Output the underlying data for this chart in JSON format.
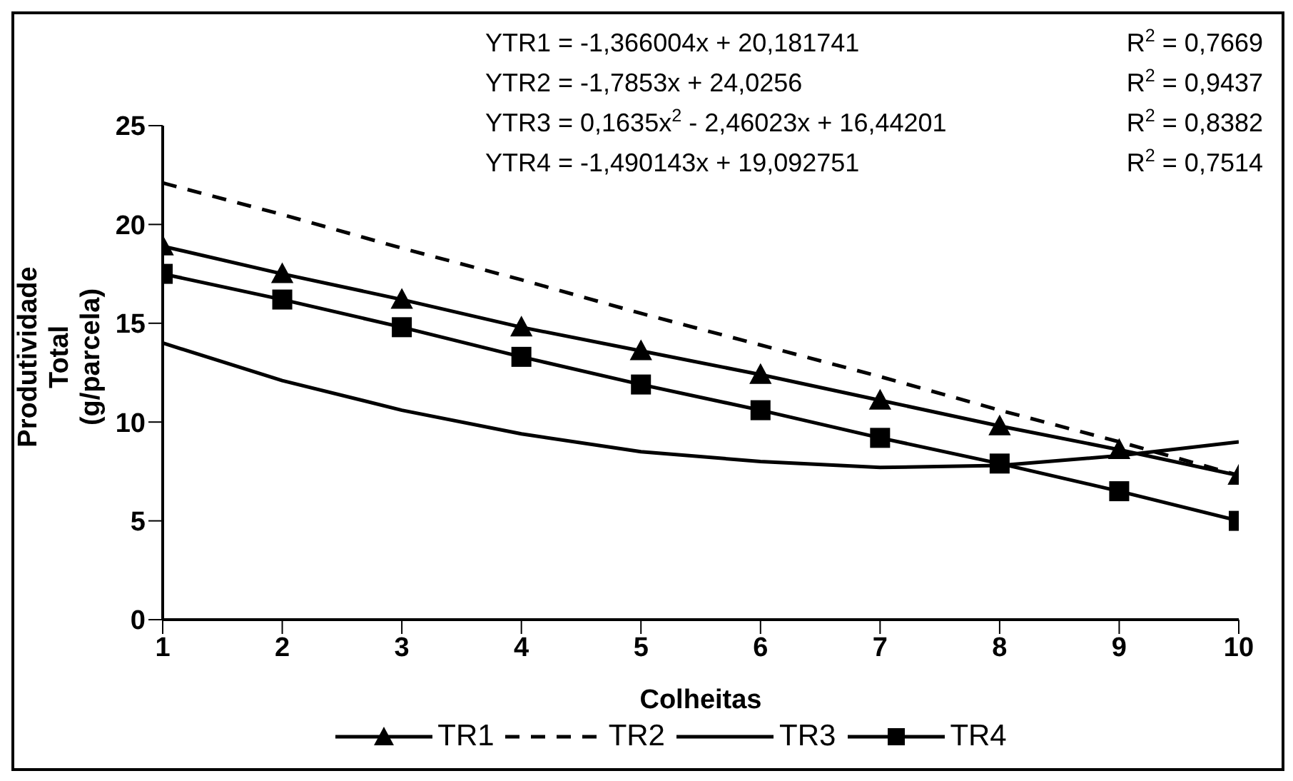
{
  "chart_data": {
    "type": "line",
    "xlabel": "Colheitas",
    "ylabel": "Produtividade Total (g/parcela)",
    "x": [
      1,
      2,
      3,
      4,
      5,
      6,
      7,
      8,
      9,
      10
    ],
    "series": [
      {
        "name": "TR1",
        "color": "#000000",
        "marker": "triangle",
        "line_style": "solid",
        "values": [
          18.9,
          17.5,
          16.2,
          14.8,
          13.6,
          12.4,
          11.1,
          9.8,
          8.6,
          7.3
        ]
      },
      {
        "name": "TR2",
        "color": "#000000",
        "marker": "none",
        "line_style": "dashed",
        "values": [
          22.1,
          20.5,
          18.8,
          17.2,
          15.5,
          13.9,
          12.3,
          10.6,
          9.0,
          7.3
        ]
      },
      {
        "name": "TR3",
        "color": "#000000",
        "marker": "none",
        "line_style": "solid",
        "values": [
          14.0,
          12.1,
          10.6,
          9.4,
          8.5,
          8.0,
          7.7,
          7.8,
          8.3,
          9.0
        ]
      },
      {
        "name": "TR4",
        "color": "#000000",
        "marker": "square",
        "line_style": "solid",
        "values": [
          17.5,
          16.2,
          14.8,
          13.3,
          11.9,
          10.6,
          9.2,
          7.9,
          6.5,
          5.0
        ]
      }
    ],
    "xlim": [
      1,
      10
    ],
    "xticks": [
      1,
      2,
      3,
      4,
      5,
      6,
      7,
      8,
      9,
      10
    ],
    "ylim": [
      0,
      25
    ],
    "yticks": [
      0,
      5,
      10,
      15,
      20,
      25
    ],
    "grid": false,
    "legend": "bottom",
    "annotations": [
      "YTR1 = -1,366004x + 20,181741",
      "R$^{2}$ = 0,7669",
      "YTR2 = -1,7853x + 24,0256",
      "R$^{2}$ = 0,9437",
      "YTR3 = 0,1635x$^{2}$ - 2,46023x + 16,44201",
      "R$^{2}$ = 0,8382",
      "YTR4 = -1,490143x + 19,092751",
      "R$^{2}$ = 0,7514"
    ]
  }
}
